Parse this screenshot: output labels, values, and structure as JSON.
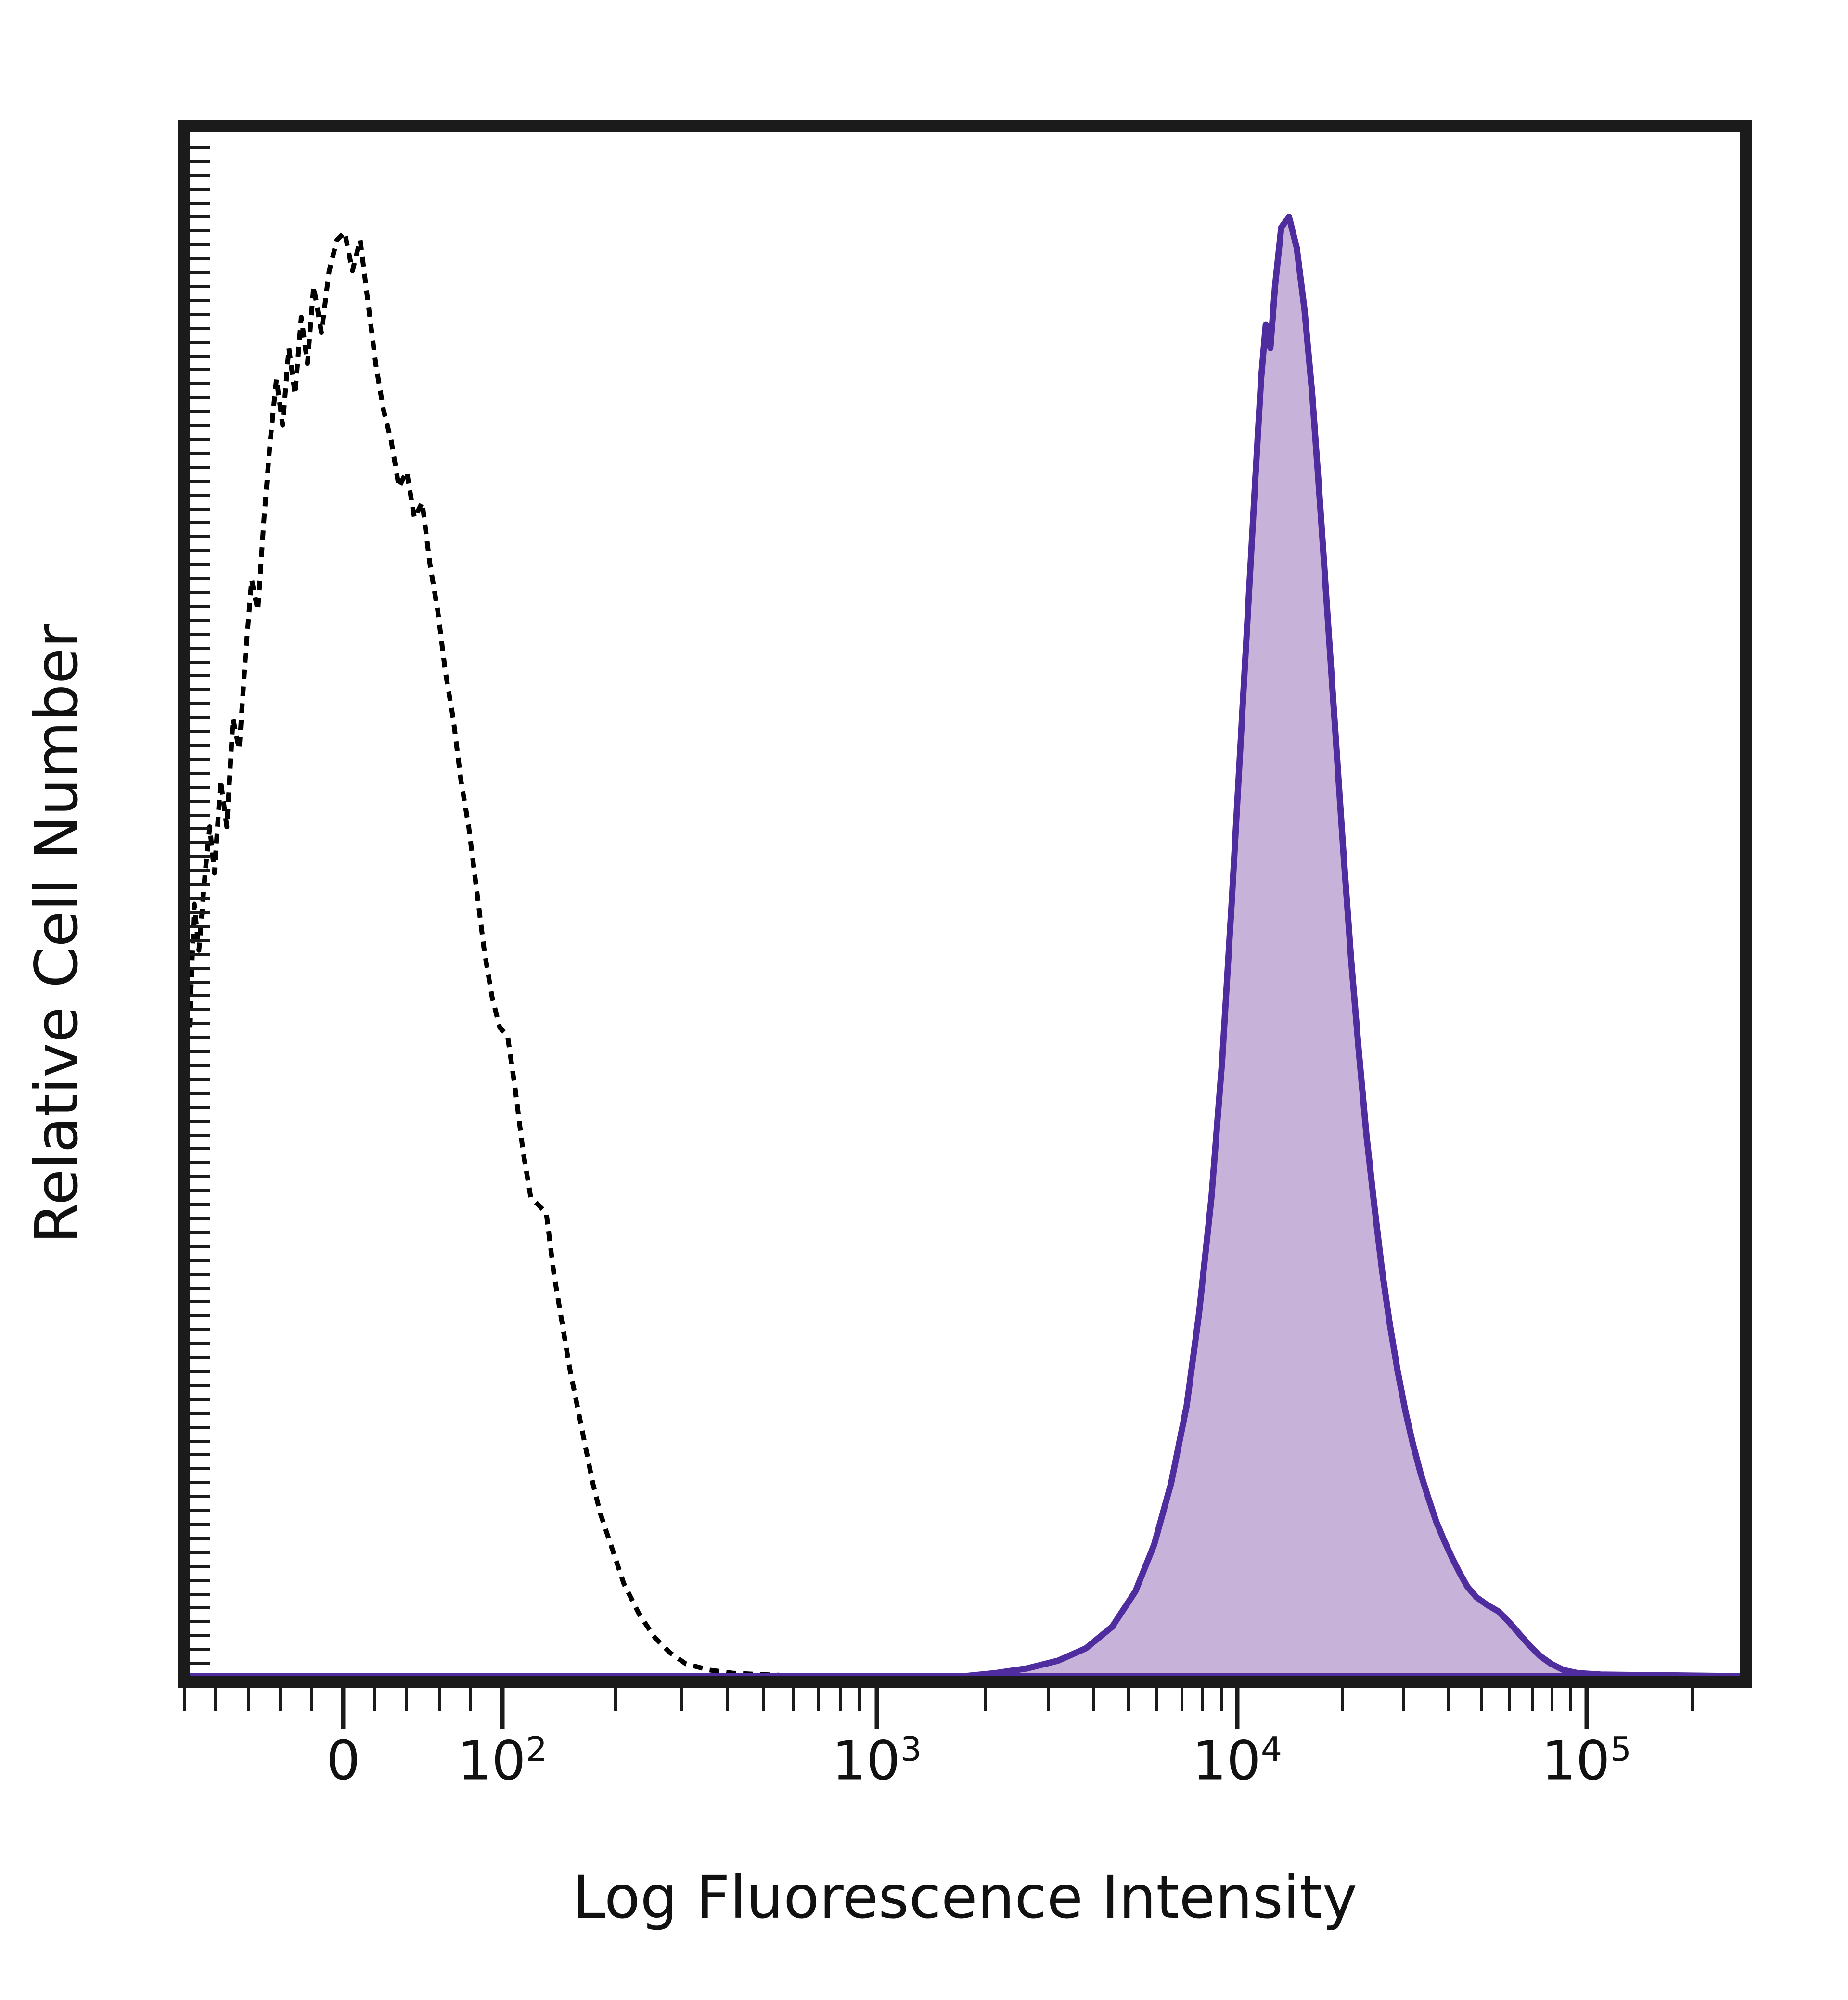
{
  "colors": {
    "axis": "#1b1b1b",
    "control_stroke": "#000000",
    "stained_stroke": "#4f2d9f",
    "stained_fill": "#c7b2da",
    "background": "#ffffff"
  },
  "chart_data": {
    "type": "area",
    "title": "",
    "xlabel": "Log Fluorescence Intensity",
    "ylabel": "Relative Cell Number",
    "x_scale": "symlog",
    "ylim": [
      0,
      1
    ],
    "grid": false,
    "legend": "none",
    "x_ticks": [
      {
        "base": "0",
        "sup": "",
        "frac": 0.105
      },
      {
        "base": "10",
        "sup": "2",
        "frac": 0.206
      },
      {
        "base": "10",
        "sup": "3",
        "frac": 0.444
      },
      {
        "base": "10",
        "sup": "4",
        "frac": 0.673
      },
      {
        "base": "10",
        "sup": "5",
        "frac": 0.895
      }
    ],
    "x_minor_ticks": [
      0.004,
      0.024,
      0.045,
      0.065,
      0.085,
      0.125,
      0.145,
      0.166,
      0.186,
      0.278,
      0.32,
      0.349,
      0.372,
      0.391,
      0.407,
      0.421,
      0.433,
      0.513,
      0.553,
      0.582,
      0.604,
      0.622,
      0.638,
      0.651,
      0.663,
      0.74,
      0.779,
      0.807,
      0.828,
      0.846,
      0.861,
      0.873,
      0.885,
      0.962
    ],
    "series": [
      {
        "name": "dashed_black_control",
        "style": "dashed",
        "color": "#000000",
        "fill": "none",
        "stroke_width": 10,
        "points": [
          [
            0.0,
            0.42
          ],
          [
            0.003,
            0.5
          ],
          [
            0.006,
            0.47
          ],
          [
            0.01,
            0.52
          ],
          [
            0.013,
            0.55
          ],
          [
            0.016,
            0.52
          ],
          [
            0.02,
            0.58
          ],
          [
            0.024,
            0.55
          ],
          [
            0.028,
            0.62
          ],
          [
            0.032,
            0.6
          ],
          [
            0.036,
            0.66
          ],
          [
            0.04,
            0.71
          ],
          [
            0.044,
            0.69
          ],
          [
            0.048,
            0.75
          ],
          [
            0.052,
            0.8
          ],
          [
            0.056,
            0.84
          ],
          [
            0.06,
            0.81
          ],
          [
            0.064,
            0.86
          ],
          [
            0.068,
            0.83
          ],
          [
            0.072,
            0.88
          ],
          [
            0.076,
            0.85
          ],
          [
            0.08,
            0.9
          ],
          [
            0.085,
            0.87
          ],
          [
            0.09,
            0.91
          ],
          [
            0.095,
            0.93
          ],
          [
            0.1,
            0.935
          ],
          [
            0.105,
            0.91
          ],
          [
            0.11,
            0.93
          ],
          [
            0.115,
            0.89
          ],
          [
            0.12,
            0.85
          ],
          [
            0.125,
            0.82
          ],
          [
            0.13,
            0.8
          ],
          [
            0.135,
            0.77
          ],
          [
            0.14,
            0.78
          ],
          [
            0.145,
            0.75
          ],
          [
            0.15,
            0.76
          ],
          [
            0.155,
            0.72
          ],
          [
            0.16,
            0.69
          ],
          [
            0.165,
            0.65
          ],
          [
            0.17,
            0.62
          ],
          [
            0.175,
            0.58
          ],
          [
            0.18,
            0.55
          ],
          [
            0.185,
            0.51
          ],
          [
            0.19,
            0.47
          ],
          [
            0.195,
            0.44
          ],
          [
            0.2,
            0.42
          ],
          [
            0.205,
            0.415
          ],
          [
            0.21,
            0.38
          ],
          [
            0.215,
            0.34
          ],
          [
            0.22,
            0.31
          ],
          [
            0.225,
            0.305
          ],
          [
            0.23,
            0.3
          ],
          [
            0.235,
            0.26
          ],
          [
            0.24,
            0.23
          ],
          [
            0.245,
            0.2
          ],
          [
            0.25,
            0.175
          ],
          [
            0.255,
            0.15
          ],
          [
            0.26,
            0.125
          ],
          [
            0.265,
            0.105
          ],
          [
            0.27,
            0.09
          ],
          [
            0.275,
            0.075
          ],
          [
            0.28,
            0.06
          ],
          [
            0.285,
            0.05
          ],
          [
            0.29,
            0.04
          ],
          [
            0.3,
            0.025
          ],
          [
            0.31,
            0.015
          ],
          [
            0.32,
            0.008
          ],
          [
            0.335,
            0.004
          ],
          [
            0.35,
            0.002
          ],
          [
            0.37,
            0.001
          ],
          [
            0.4,
            0.0
          ]
        ]
      },
      {
        "name": "filled_purple_stained",
        "style": "solid",
        "color": "#4f2d9f",
        "fill": "#c7b2da",
        "stroke_width": 13,
        "points": [
          [
            0.0,
            0.0
          ],
          [
            0.5,
            0.0
          ],
          [
            0.52,
            0.002
          ],
          [
            0.54,
            0.005
          ],
          [
            0.56,
            0.01
          ],
          [
            0.578,
            0.018
          ],
          [
            0.595,
            0.032
          ],
          [
            0.61,
            0.055
          ],
          [
            0.622,
            0.085
          ],
          [
            0.633,
            0.125
          ],
          [
            0.643,
            0.175
          ],
          [
            0.651,
            0.235
          ],
          [
            0.659,
            0.31
          ],
          [
            0.666,
            0.4
          ],
          [
            0.672,
            0.5
          ],
          [
            0.677,
            0.59
          ],
          [
            0.682,
            0.68
          ],
          [
            0.687,
            0.77
          ],
          [
            0.691,
            0.84
          ],
          [
            0.694,
            0.875
          ],
          [
            0.697,
            0.86
          ],
          [
            0.7,
            0.9
          ],
          [
            0.704,
            0.938
          ],
          [
            0.709,
            0.945
          ],
          [
            0.714,
            0.925
          ],
          [
            0.719,
            0.885
          ],
          [
            0.724,
            0.83
          ],
          [
            0.729,
            0.76
          ],
          [
            0.734,
            0.685
          ],
          [
            0.739,
            0.61
          ],
          [
            0.744,
            0.535
          ],
          [
            0.749,
            0.465
          ],
          [
            0.754,
            0.405
          ],
          [
            0.759,
            0.35
          ],
          [
            0.764,
            0.305
          ],
          [
            0.769,
            0.263
          ],
          [
            0.774,
            0.228
          ],
          [
            0.779,
            0.198
          ],
          [
            0.784,
            0.172
          ],
          [
            0.789,
            0.15
          ],
          [
            0.794,
            0.131
          ],
          [
            0.799,
            0.115
          ],
          [
            0.804,
            0.1
          ],
          [
            0.809,
            0.088
          ],
          [
            0.814,
            0.077
          ],
          [
            0.819,
            0.067
          ],
          [
            0.824,
            0.058
          ],
          [
            0.83,
            0.051
          ],
          [
            0.837,
            0.046
          ],
          [
            0.844,
            0.042
          ],
          [
            0.85,
            0.036
          ],
          [
            0.857,
            0.028
          ],
          [
            0.864,
            0.02
          ],
          [
            0.871,
            0.013
          ],
          [
            0.878,
            0.008
          ],
          [
            0.886,
            0.004
          ],
          [
            0.895,
            0.002
          ],
          [
            0.91,
            0.001
          ],
          [
            1.0,
            0.0
          ]
        ]
      }
    ]
  }
}
